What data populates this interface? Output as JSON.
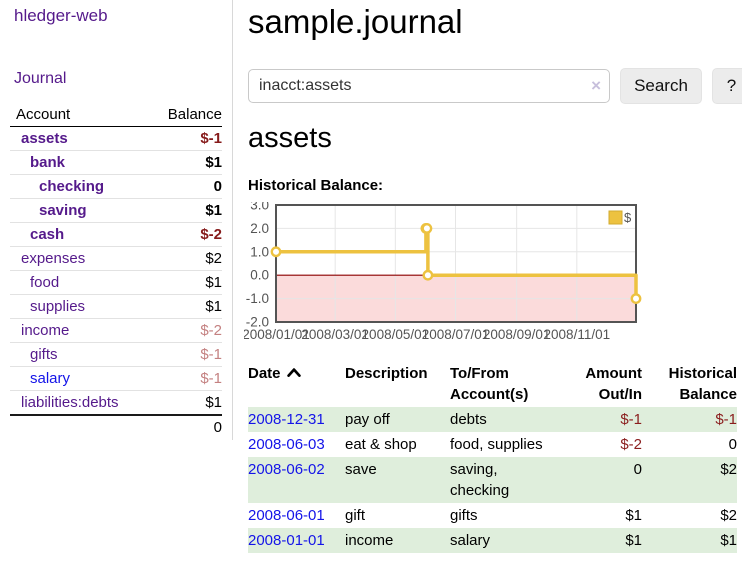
{
  "colors": {
    "link_purple": "#551a8b",
    "link_blue": "#1414e8",
    "negative_dark": "#861b1b",
    "negative_light": "#c48181",
    "row_stripe_green": "#dfeedc",
    "sidebar_border": "#d8d8d8"
  },
  "sidebar": {
    "app_title": "hledger-web",
    "journal_label": "Journal",
    "accounts_table": {
      "headers": {
        "account": "Account",
        "balance": "Balance"
      },
      "rows": [
        {
          "name": "assets",
          "balance": "$-1",
          "depth": 0,
          "bold": true,
          "balance_style": "neg-dark"
        },
        {
          "name": "bank",
          "balance": "$1",
          "depth": 1,
          "bold": true,
          "balance_style": ""
        },
        {
          "name": "checking",
          "balance": "0",
          "depth": 2,
          "bold": true,
          "balance_style": ""
        },
        {
          "name": "saving",
          "balance": "$1",
          "depth": 2,
          "bold": true,
          "balance_style": ""
        },
        {
          "name": "cash",
          "balance": "$-2",
          "depth": 1,
          "bold": true,
          "balance_style": "neg-dark"
        },
        {
          "name": "expenses",
          "balance": "$2",
          "depth": 0,
          "bold": false,
          "balance_style": ""
        },
        {
          "name": "food",
          "balance": "$1",
          "depth": 1,
          "bold": false,
          "balance_style": ""
        },
        {
          "name": "supplies",
          "balance": "$1",
          "depth": 1,
          "bold": false,
          "balance_style": ""
        },
        {
          "name": "income",
          "balance": "$-2",
          "depth": 0,
          "bold": false,
          "balance_style": "neg-light"
        },
        {
          "name": "gifts",
          "balance": "$-1",
          "depth": 1,
          "bold": false,
          "balance_style": "neg-light"
        },
        {
          "name": "salary",
          "balance": "$-1",
          "depth": 1,
          "bold": false,
          "balance_style": "neg-light",
          "unvisited": true
        },
        {
          "name": "liabilities:debts",
          "balance": "$1",
          "depth": 0,
          "bold": false,
          "balance_style": ""
        }
      ],
      "total": "0"
    }
  },
  "main": {
    "title": "sample.journal",
    "search": {
      "value": "inacct:assets",
      "clear_icon": "×",
      "button_label": "Search",
      "help_label": "?"
    },
    "account_heading": "assets",
    "chart_heading": "Historical Balance:",
    "register_table": {
      "headers": [
        {
          "line1": "Date",
          "line2": "",
          "sort": "asc"
        },
        {
          "line1": "Description",
          "line2": ""
        },
        {
          "line1": "To/From",
          "line2": "Account(s)"
        },
        {
          "line1": "Amount",
          "line2": "Out/In"
        },
        {
          "line1": "Historical",
          "line2": "Balance"
        }
      ],
      "rows": [
        {
          "date": "2008-12-31",
          "description": "pay off",
          "accounts": "debts",
          "amount": "$-1",
          "balance": "$-1"
        },
        {
          "date": "2008-06-03",
          "description": "eat & shop",
          "accounts": "food, supplies",
          "amount": "$-2",
          "balance": "0"
        },
        {
          "date": "2008-06-02",
          "description": "save",
          "accounts": "saving, checking",
          "amount": "0",
          "balance": "$2"
        },
        {
          "date": "2008-06-01",
          "description": "gift",
          "accounts": "gifts",
          "amount": "$1",
          "balance": "$2"
        },
        {
          "date": "2008-01-01",
          "description": "income",
          "accounts": "salary",
          "amount": "$1",
          "balance": "$1"
        }
      ]
    }
  },
  "chart_data": {
    "type": "line",
    "step": true,
    "title": "Historical Balance:",
    "series": [
      {
        "name": "$",
        "color": "#edc240",
        "points": [
          [
            "2008-01-01",
            1
          ],
          [
            "2008-06-01",
            2
          ],
          [
            "2008-06-02",
            2
          ],
          [
            "2008-06-03",
            0
          ],
          [
            "2008-12-31",
            -1
          ]
        ]
      }
    ],
    "x_range": [
      "2008/01/01",
      "2008/12/31"
    ],
    "ylim": [
      -2,
      3
    ],
    "yticks": [
      "3.0",
      "2.0",
      "1.0",
      "0.0",
      "-1.0",
      "-2.0"
    ],
    "xticks": [
      "2008/01/01",
      "2008/03/01",
      "2008/05/01",
      "2008/07/01",
      "2008/09/01",
      "2008/11/01"
    ],
    "grid": true,
    "gridline_color": "#e6e6e6",
    "border_color": "#545454",
    "tick_label_color": "#545454",
    "negative_region_color": "#fbdbdb",
    "zero_line_color": "#8b0000",
    "legend": {
      "label": "$",
      "position": "top-right"
    }
  }
}
